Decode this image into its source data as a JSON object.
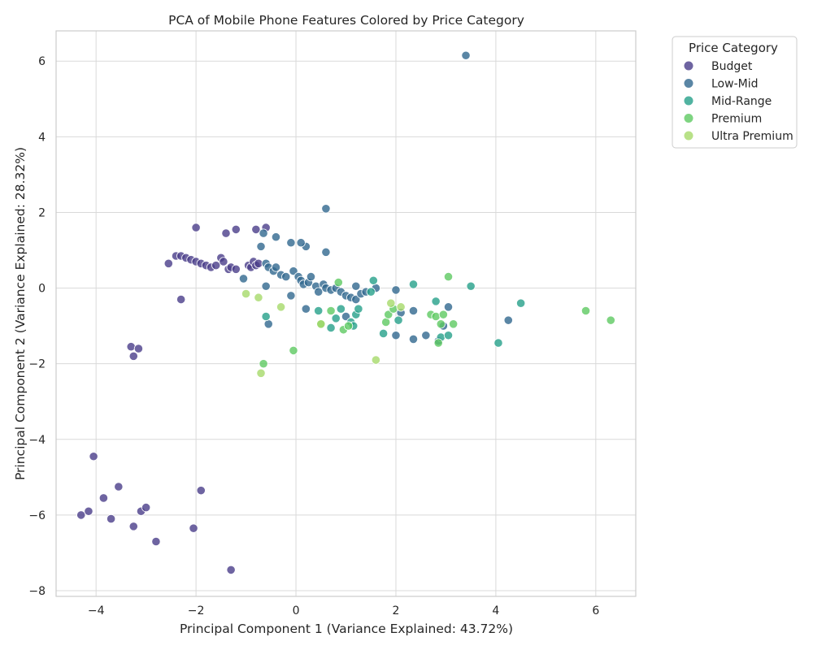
{
  "chart_data": {
    "type": "scatter",
    "title": "PCA of Mobile Phone Features Colored by Price Category",
    "xlabel": "Principal Component 1 (Variance Explained: 43.72%)",
    "ylabel": "Principal Component 2 (Variance Explained: 28.32%)",
    "xlim": [
      -4.8,
      6.8
    ],
    "ylim": [
      -8.15,
      6.8
    ],
    "x_ticks": [
      -4,
      -2,
      0,
      2,
      4,
      6
    ],
    "y_ticks": [
      -8,
      -6,
      -4,
      -2,
      0,
      2,
      4,
      6
    ],
    "x_tick_labels": [
      "−4",
      "−2",
      "0",
      "2",
      "4",
      "6"
    ],
    "y_tick_labels": [
      "−8",
      "−6",
      "−4",
      "−2",
      "0",
      "2",
      "4",
      "6"
    ],
    "grid": true,
    "legend": {
      "title": "Price Category",
      "placement": "outside-top-right"
    },
    "series": [
      {
        "name": "Budget",
        "color": "#4a3d8a",
        "points": [
          [
            -4.3,
            -6.0
          ],
          [
            -4.15,
            -5.9
          ],
          [
            -4.05,
            -4.45
          ],
          [
            -3.85,
            -5.55
          ],
          [
            -3.7,
            -6.1
          ],
          [
            -3.55,
            -5.25
          ],
          [
            -3.25,
            -6.3
          ],
          [
            -3.1,
            -5.9
          ],
          [
            -3.0,
            -5.8
          ],
          [
            -2.8,
            -6.7
          ],
          [
            -2.05,
            -6.35
          ],
          [
            -1.9,
            -5.35
          ],
          [
            -1.3,
            -7.45
          ],
          [
            -3.3,
            -1.55
          ],
          [
            -3.25,
            -1.8
          ],
          [
            -3.15,
            -1.6
          ],
          [
            -2.3,
            -0.3
          ],
          [
            -2.55,
            0.65
          ],
          [
            -2.4,
            0.85
          ],
          [
            -2.3,
            0.85
          ],
          [
            -2.2,
            0.8
          ],
          [
            -2.1,
            0.75
          ],
          [
            -2.0,
            0.7
          ],
          [
            -1.9,
            0.65
          ],
          [
            -1.8,
            0.6
          ],
          [
            -1.7,
            0.55
          ],
          [
            -1.6,
            0.6
          ],
          [
            -1.5,
            0.8
          ],
          [
            -1.45,
            0.7
          ],
          [
            -1.35,
            0.5
          ],
          [
            -1.3,
            0.55
          ],
          [
            -1.2,
            0.5
          ],
          [
            -0.95,
            0.6
          ],
          [
            -0.9,
            0.55
          ],
          [
            -0.85,
            0.7
          ],
          [
            -0.8,
            0.6
          ],
          [
            -0.75,
            0.65
          ],
          [
            -2.0,
            1.6
          ],
          [
            -1.4,
            1.45
          ],
          [
            -1.2,
            1.55
          ],
          [
            -0.8,
            1.55
          ],
          [
            -0.6,
            1.6
          ]
        ]
      },
      {
        "name": "Low-Mid",
        "color": "#31688e",
        "points": [
          [
            3.4,
            6.15
          ],
          [
            0.6,
            2.1
          ],
          [
            0.6,
            0.95
          ],
          [
            0.2,
            1.1
          ],
          [
            0.1,
            1.2
          ],
          [
            -0.1,
            1.2
          ],
          [
            -0.4,
            1.35
          ],
          [
            -0.7,
            1.1
          ],
          [
            -0.65,
            1.45
          ],
          [
            -1.05,
            0.25
          ],
          [
            -0.6,
            0.65
          ],
          [
            -0.55,
            0.55
          ],
          [
            -0.45,
            0.45
          ],
          [
            -0.4,
            0.55
          ],
          [
            -0.3,
            0.35
          ],
          [
            -0.2,
            0.3
          ],
          [
            -0.05,
            0.45
          ],
          [
            0.05,
            0.3
          ],
          [
            0.1,
            0.2
          ],
          [
            0.15,
            0.1
          ],
          [
            0.25,
            0.15
          ],
          [
            0.3,
            0.3
          ],
          [
            0.4,
            0.05
          ],
          [
            0.45,
            -0.1
          ],
          [
            0.55,
            0.1
          ],
          [
            0.6,
            0.0
          ],
          [
            0.7,
            -0.05
          ],
          [
            0.8,
            0.0
          ],
          [
            0.9,
            -0.1
          ],
          [
            1.0,
            -0.2
          ],
          [
            1.1,
            -0.25
          ],
          [
            1.2,
            -0.3
          ],
          [
            1.3,
            -0.15
          ],
          [
            1.4,
            -0.1
          ],
          [
            1.6,
            0.0
          ],
          [
            2.0,
            -0.05
          ],
          [
            2.1,
            -0.65
          ],
          [
            2.35,
            -0.6
          ],
          [
            3.05,
            -0.5
          ],
          [
            4.25,
            -0.85
          ],
          [
            2.0,
            -1.25
          ],
          [
            2.35,
            -1.35
          ],
          [
            2.6,
            -1.25
          ],
          [
            2.85,
            -1.4
          ],
          [
            2.95,
            -1.0
          ],
          [
            -0.1,
            -0.2
          ],
          [
            0.2,
            -0.55
          ],
          [
            -0.6,
            0.05
          ],
          [
            -0.55,
            -0.95
          ],
          [
            1.0,
            -0.75
          ],
          [
            1.2,
            0.05
          ]
        ]
      },
      {
        "name": "Mid-Range",
        "color": "#26a08a",
        "points": [
          [
            -0.6,
            -0.75
          ],
          [
            0.45,
            -0.6
          ],
          [
            0.7,
            -1.05
          ],
          [
            0.8,
            -0.8
          ],
          [
            0.9,
            -0.55
          ],
          [
            1.1,
            -0.9
          ],
          [
            1.2,
            -0.7
          ],
          [
            1.25,
            -0.55
          ],
          [
            1.5,
            -0.1
          ],
          [
            1.55,
            0.2
          ],
          [
            1.75,
            -1.2
          ],
          [
            2.05,
            -0.85
          ],
          [
            2.35,
            0.1
          ],
          [
            2.8,
            -0.35
          ],
          [
            2.9,
            -1.3
          ],
          [
            3.05,
            -1.25
          ],
          [
            3.5,
            0.05
          ],
          [
            4.05,
            -1.45
          ],
          [
            4.5,
            -0.4
          ],
          [
            1.15,
            -1.0
          ]
        ]
      },
      {
        "name": "Premium",
        "color": "#5ec962",
        "points": [
          [
            -0.65,
            -2.0
          ],
          [
            -0.05,
            -1.65
          ],
          [
            0.5,
            -0.95
          ],
          [
            0.7,
            -0.6
          ],
          [
            0.95,
            -1.1
          ],
          [
            1.05,
            -1.0
          ],
          [
            1.8,
            -0.9
          ],
          [
            1.85,
            -0.7
          ],
          [
            1.95,
            -0.55
          ],
          [
            2.7,
            -0.7
          ],
          [
            2.8,
            -0.75
          ],
          [
            2.85,
            -1.45
          ],
          [
            2.9,
            -0.95
          ],
          [
            2.95,
            -0.7
          ],
          [
            3.05,
            0.3
          ],
          [
            3.15,
            -0.95
          ],
          [
            5.8,
            -0.6
          ],
          [
            6.3,
            -0.85
          ],
          [
            0.85,
            0.15
          ]
        ]
      },
      {
        "name": "Ultra Premium",
        "color": "#a6d96a",
        "points": [
          [
            -1.0,
            -0.15
          ],
          [
            -0.75,
            -0.25
          ],
          [
            -0.3,
            -0.5
          ],
          [
            0.5,
            -0.95
          ],
          [
            1.6,
            -1.9
          ],
          [
            1.9,
            -0.4
          ],
          [
            2.1,
            -0.5
          ],
          [
            -0.7,
            -2.25
          ]
        ]
      }
    ]
  }
}
